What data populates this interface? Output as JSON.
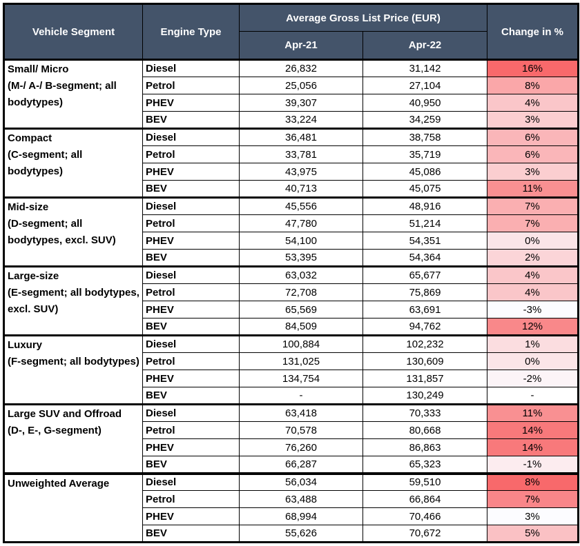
{
  "table": {
    "header": {
      "vehicle_segment": "Vehicle Segment",
      "engine_type": "Engine Type",
      "price_group": "Average Gross List Price (EUR)",
      "col_apr21": "Apr-21",
      "col_apr22": "Apr-22",
      "change": "Change in %"
    },
    "colors": {
      "header_bg": "#44546A",
      "header_text": "#FFFFFF",
      "border": "#000000",
      "scale_max_red": "#F8696B",
      "scale_min_white": "#FCFCFF"
    },
    "segments": [
      {
        "name": "Small/ Micro",
        "detail": "(M-/ A-/ B-segment; all bodytypes)",
        "rows": [
          {
            "engine": "Diesel",
            "apr21": "26,832",
            "apr22": "31,142",
            "change": "16%",
            "change_color": "#F8696B"
          },
          {
            "engine": "Petrol",
            "apr21": "25,056",
            "apr22": "27,104",
            "change": "8%",
            "change_color": "#FAA7A9"
          },
          {
            "engine": "PHEV",
            "apr21": "39,307",
            "apr22": "40,950",
            "change": "4%",
            "change_color": "#FAC6C9"
          },
          {
            "engine": "BEV",
            "apr21": "33,224",
            "apr22": "34,259",
            "change": "3%",
            "change_color": "#FBCED0"
          }
        ]
      },
      {
        "name": "Compact",
        "detail": "(C-segment; all bodytypes)",
        "rows": [
          {
            "engine": "Diesel",
            "apr21": "36,481",
            "apr22": "38,758",
            "change": "6%",
            "change_color": "#FAB6B9"
          },
          {
            "engine": "Petrol",
            "apr21": "33,781",
            "apr22": "35,719",
            "change": "6%",
            "change_color": "#FAB6B9"
          },
          {
            "engine": "PHEV",
            "apr21": "43,975",
            "apr22": "45,086",
            "change": "3%",
            "change_color": "#FBCED0"
          },
          {
            "engine": "BEV",
            "apr21": "40,713",
            "apr22": "45,075",
            "change": "11%",
            "change_color": "#F99092"
          }
        ]
      },
      {
        "name": "Mid-size",
        "detail": "(D-segment; all bodytypes, excl. SUV)",
        "rows": [
          {
            "engine": "Diesel",
            "apr21": "45,556",
            "apr22": "48,916",
            "change": "7%",
            "change_color": "#FAAFB1"
          },
          {
            "engine": "Petrol",
            "apr21": "47,780",
            "apr22": "51,214",
            "change": "7%",
            "change_color": "#FAAFB1"
          },
          {
            "engine": "PHEV",
            "apr21": "54,100",
            "apr22": "54,351",
            "change": "0%",
            "change_color": "#FBE5E8"
          },
          {
            "engine": "BEV",
            "apr21": "53,395",
            "apr22": "54,364",
            "change": "2%",
            "change_color": "#FBD5D8"
          }
        ]
      },
      {
        "name": "Large-size",
        "detail": "(E-segment; all bodytypes, excl. SUV)",
        "rows": [
          {
            "engine": "Diesel",
            "apr21": "63,032",
            "apr22": "65,677",
            "change": "4%",
            "change_color": "#FAC6C9"
          },
          {
            "engine": "Petrol",
            "apr21": "72,708",
            "apr22": "75,869",
            "change": "4%",
            "change_color": "#FAC6C9"
          },
          {
            "engine": "PHEV",
            "apr21": "65,569",
            "apr22": "63,691",
            "change": "-3%",
            "change_color": "#FCFCFF"
          },
          {
            "engine": "BEV",
            "apr21": "84,509",
            "apr22": "94,762",
            "change": "12%",
            "change_color": "#F9888A"
          }
        ]
      },
      {
        "name": "Luxury",
        "detail": "(F-segment; all bodytypes)",
        "rows": [
          {
            "engine": "Diesel",
            "apr21": "100,884",
            "apr22": "102,232",
            "change": "1%",
            "change_color": "#FBDDE0"
          },
          {
            "engine": "Petrol",
            "apr21": "131,025",
            "apr22": "130,609",
            "change": "0%",
            "change_color": "#FBE5E8"
          },
          {
            "engine": "PHEV",
            "apr21": "134,754",
            "apr22": "131,857",
            "change": "-2%",
            "change_color": "#FCF4F7"
          },
          {
            "engine": "BEV",
            "apr21": "-",
            "apr22": "130,249",
            "change": "-",
            "change_color": "#FFFFFF"
          }
        ]
      },
      {
        "name": "Large SUV and Offroad",
        "detail": "(D-, E-, G-segment)",
        "rows": [
          {
            "engine": "Diesel",
            "apr21": "63,418",
            "apr22": "70,333",
            "change": "11%",
            "change_color": "#F99092"
          },
          {
            "engine": "Petrol",
            "apr21": "70,578",
            "apr22": "80,668",
            "change": "14%",
            "change_color": "#F8797B"
          },
          {
            "engine": "PHEV",
            "apr21": "76,260",
            "apr22": "86,863",
            "change": "14%",
            "change_color": "#F8797B"
          },
          {
            "engine": "BEV",
            "apr21": "66,287",
            "apr22": "65,323",
            "change": "-1%",
            "change_color": "#FCECEF"
          }
        ]
      },
      {
        "name": "Unweighted Average",
        "detail": "",
        "rows": [
          {
            "engine": "Diesel",
            "apr21": "56,034",
            "apr22": "59,510",
            "change": "8%",
            "change_color": "#F8696B"
          },
          {
            "engine": "Petrol",
            "apr21": "63,488",
            "apr22": "66,864",
            "change": "7%",
            "change_color": "#F98689"
          },
          {
            "engine": "PHEV",
            "apr21": "68,994",
            "apr22": "70,466",
            "change": "3%",
            "change_color": "#FCFCFF"
          },
          {
            "engine": "BEV",
            "apr21": "55,626",
            "apr22": "70,672",
            "change": "5%",
            "change_color": "#FAC1C4"
          }
        ]
      }
    ]
  },
  "chart_data": {
    "type": "table",
    "title": "Average Gross List Price (EUR)",
    "columns": [
      "Vehicle Segment",
      "Engine Type",
      "Apr-21",
      "Apr-22",
      "Change in %"
    ],
    "rows": [
      [
        "Small/ Micro (M-/ A-/ B-segment; all bodytypes)",
        "Diesel",
        26832,
        31142,
        16
      ],
      [
        "Small/ Micro (M-/ A-/ B-segment; all bodytypes)",
        "Petrol",
        25056,
        27104,
        8
      ],
      [
        "Small/ Micro (M-/ A-/ B-segment; all bodytypes)",
        "PHEV",
        39307,
        40950,
        4
      ],
      [
        "Small/ Micro (M-/ A-/ B-segment; all bodytypes)",
        "BEV",
        33224,
        34259,
        3
      ],
      [
        "Compact (C-segment; all bodytypes)",
        "Diesel",
        36481,
        38758,
        6
      ],
      [
        "Compact (C-segment; all bodytypes)",
        "Petrol",
        33781,
        35719,
        6
      ],
      [
        "Compact (C-segment; all bodytypes)",
        "PHEV",
        43975,
        45086,
        3
      ],
      [
        "Compact (C-segment; all bodytypes)",
        "BEV",
        40713,
        45075,
        11
      ],
      [
        "Mid-size (D-segment; all bodytypes, excl. SUV)",
        "Diesel",
        45556,
        48916,
        7
      ],
      [
        "Mid-size (D-segment; all bodytypes, excl. SUV)",
        "Petrol",
        47780,
        51214,
        7
      ],
      [
        "Mid-size (D-segment; all bodytypes, excl. SUV)",
        "PHEV",
        54100,
        54351,
        0
      ],
      [
        "Mid-size (D-segment; all bodytypes, excl. SUV)",
        "BEV",
        53395,
        54364,
        2
      ],
      [
        "Large-size (E-segment; all bodytypes, excl. SUV)",
        "Diesel",
        63032,
        65677,
        4
      ],
      [
        "Large-size (E-segment; all bodytypes, excl. SUV)",
        "Petrol",
        72708,
        75869,
        4
      ],
      [
        "Large-size (E-segment; all bodytypes, excl. SUV)",
        "PHEV",
        65569,
        63691,
        -3
      ],
      [
        "Large-size (E-segment; all bodytypes, excl. SUV)",
        "BEV",
        84509,
        94762,
        12
      ],
      [
        "Luxury (F-segment; all bodytypes)",
        "Diesel",
        100884,
        102232,
        1
      ],
      [
        "Luxury (F-segment; all bodytypes)",
        "Petrol",
        131025,
        130609,
        0
      ],
      [
        "Luxury (F-segment; all bodytypes)",
        "PHEV",
        134754,
        131857,
        -2
      ],
      [
        "Luxury (F-segment; all bodytypes)",
        "BEV",
        null,
        130249,
        null
      ],
      [
        "Large SUV and Offroad (D-, E-, G-segment)",
        "Diesel",
        63418,
        70333,
        11
      ],
      [
        "Large SUV and Offroad (D-, E-, G-segment)",
        "Petrol",
        70578,
        80668,
        14
      ],
      [
        "Large SUV and Offroad (D-, E-, G-segment)",
        "PHEV",
        76260,
        86863,
        14
      ],
      [
        "Large SUV and Offroad (D-, E-, G-segment)",
        "BEV",
        66287,
        65323,
        -1
      ],
      [
        "Unweighted Average",
        "Diesel",
        56034,
        59510,
        8
      ],
      [
        "Unweighted Average",
        "Petrol",
        63488,
        66864,
        7
      ],
      [
        "Unweighted Average",
        "PHEV",
        68994,
        70466,
        3
      ],
      [
        "Unweighted Average",
        "BEV",
        55626,
        70672,
        5
      ]
    ]
  }
}
